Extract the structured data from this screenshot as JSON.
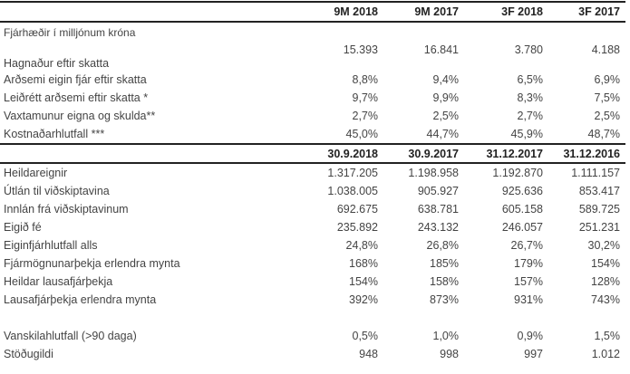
{
  "unit_label": "Fjárhæðir í milljónum króna",
  "period_headers": [
    "9M 2018",
    "9M 2017",
    "3F 2018",
    "3F 2017"
  ],
  "period_rows": [
    {
      "label": "Hagnaður eftir skatta",
      "values": [
        "15.393",
        "16.841",
        "3.780",
        "4.188"
      ]
    },
    {
      "label": "Arðsemi eigin fjár eftir skatta",
      "values": [
        "8,8%",
        "9,4%",
        "6,5%",
        "6,9%"
      ]
    },
    {
      "label": "Leiðrétt arðsemi eftir skatta *",
      "values": [
        "9,7%",
        "9,9%",
        "8,3%",
        "7,5%"
      ]
    },
    {
      "label": "Vaxtamunur eigna og skulda**",
      "values": [
        "2,7%",
        "2,5%",
        "2,7%",
        "2,5%"
      ]
    },
    {
      "label": "Kostnaðarhlutfall ***",
      "values": [
        "45,0%",
        "44,7%",
        "45,9%",
        "48,7%"
      ]
    }
  ],
  "date_headers": [
    "30.9.2018",
    "30.9.2017",
    "31.12.2017",
    "31.12.2016"
  ],
  "balance_rows": [
    {
      "label": "Heildareignir",
      "values": [
        "1.317.205",
        "1.198.958",
        "1.192.870",
        "1.111.157"
      ]
    },
    {
      "label": "Útlán til viðskiptavina",
      "values": [
        "1.038.005",
        "905.927",
        "925.636",
        "853.417"
      ]
    },
    {
      "label": "Innlán frá viðskiptavinum",
      "values": [
        "692.675",
        "638.781",
        "605.158",
        "589.725"
      ]
    },
    {
      "label": "Eigið fé",
      "values": [
        "235.892",
        "243.132",
        "246.057",
        "251.231"
      ]
    },
    {
      "label": "Eiginfjárhlutfall alls",
      "values": [
        "24,8%",
        "26,8%",
        "26,7%",
        "30,2%"
      ]
    },
    {
      "label": "Fjármögnunarþekja erlendra mynta",
      "values": [
        "168%",
        "185%",
        "179%",
        "154%"
      ]
    },
    {
      "label": "Heildar lausafjárþekja",
      "values": [
        "154%",
        "158%",
        "157%",
        "128%"
      ]
    },
    {
      "label": "Lausafjárþekja erlendra mynta",
      "values": [
        "392%",
        "873%",
        "931%",
        "743%"
      ]
    }
  ],
  "other_rows": [
    {
      "label": "Vanskilahlutfall (>90 daga)",
      "values": [
        "0,5%",
        "1,0%",
        "0,9%",
        "1,5%"
      ]
    },
    {
      "label": "Stöðugildi",
      "values": [
        "948",
        "998",
        "997",
        "1.012"
      ]
    }
  ]
}
